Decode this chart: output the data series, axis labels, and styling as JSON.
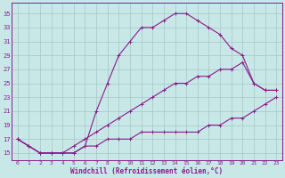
{
  "xlabel": "Windchill (Refroidissement éolien,°C)",
  "bg_color": "#c8e8e8",
  "line_color": "#8b1a8b",
  "grid_color": "#a8c4c8",
  "x_ticks": [
    0,
    1,
    2,
    3,
    4,
    5,
    6,
    7,
    8,
    9,
    10,
    11,
    12,
    13,
    14,
    15,
    16,
    17,
    18,
    19,
    20,
    21,
    22,
    23
  ],
  "y_ticks": [
    15,
    17,
    19,
    21,
    23,
    25,
    27,
    29,
    31,
    33,
    35
  ],
  "xlim": [
    -0.5,
    23.5
  ],
  "ylim": [
    14.0,
    36.5
  ],
  "curve1_x": [
    0,
    1,
    2,
    3,
    4,
    5,
    6,
    7,
    8,
    9,
    10,
    11,
    12,
    13,
    14,
    15,
    16,
    17,
    18,
    19,
    20,
    21,
    22,
    23
  ],
  "curve1_y": [
    17,
    16,
    15,
    15,
    15,
    15,
    16,
    21,
    25,
    29,
    31,
    33,
    33,
    34,
    35,
    35,
    34,
    33,
    32,
    30,
    29,
    25,
    24,
    24
  ],
  "curve2_x": [
    0,
    1,
    2,
    3,
    4,
    5,
    6,
    7,
    8,
    9,
    10,
    11,
    12,
    13,
    14,
    15,
    16,
    17,
    18,
    19,
    20,
    21,
    22,
    23
  ],
  "curve2_y": [
    17,
    16,
    15,
    15,
    15,
    16,
    17,
    18,
    19,
    20,
    21,
    22,
    23,
    24,
    25,
    25,
    26,
    26,
    27,
    27,
    28,
    25,
    24,
    24
  ],
  "curve3_x": [
    0,
    1,
    2,
    3,
    4,
    5,
    6,
    7,
    8,
    9,
    10,
    11,
    12,
    13,
    14,
    15,
    16,
    17,
    18,
    19,
    20,
    21,
    22,
    23
  ],
  "curve3_y": [
    17,
    16,
    15,
    15,
    15,
    15,
    16,
    16,
    17,
    17,
    17,
    18,
    18,
    18,
    18,
    18,
    18,
    19,
    19,
    20,
    20,
    21,
    22,
    23
  ]
}
